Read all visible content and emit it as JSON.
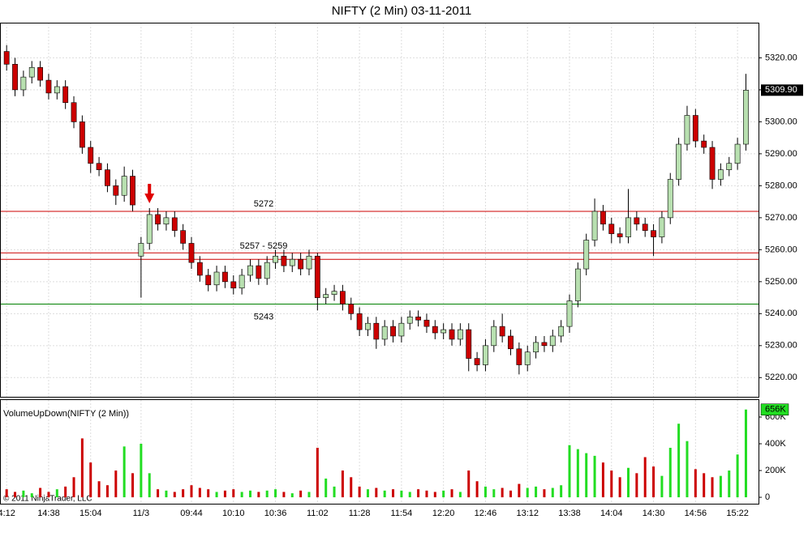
{
  "chart_data": [
    {
      "type": "candlestick",
      "title": "NIFTY (2 Min)  03-11-2011",
      "categories": [
        "4:12",
        null,
        null,
        null,
        null,
        "14:38",
        null,
        null,
        null,
        null,
        "15:04",
        null,
        null,
        null,
        null,
        null,
        "11/3",
        null,
        null,
        null,
        null,
        null,
        "09:44",
        null,
        null,
        null,
        null,
        "10:10",
        null,
        null,
        null,
        null,
        "10:36",
        null,
        null,
        null,
        null,
        "11:02",
        null,
        null,
        null,
        null,
        "11:28",
        null,
        null,
        null,
        null,
        "11:54",
        null,
        null,
        null,
        null,
        "12:20",
        null,
        null,
        null,
        null,
        "12:46",
        null,
        null,
        null,
        null,
        "13:12",
        null,
        null,
        null,
        null,
        "13:38",
        null,
        null,
        null,
        null,
        "14:04",
        null,
        null,
        null,
        null,
        "14:30",
        null,
        null,
        null,
        null,
        "14:56",
        null,
        null,
        null,
        null,
        "15:22",
        null
      ],
      "open": [
        5322,
        5318,
        5310,
        5314,
        5317,
        5313,
        5309,
        5311,
        5306,
        5300,
        5292,
        5287,
        5285,
        5280,
        5277,
        5283,
        5258,
        5262,
        5271,
        5268,
        5270,
        5266,
        5262,
        5256,
        5252,
        5249,
        5253,
        5250,
        5248,
        5252,
        5255,
        5251,
        5256,
        5258,
        5255,
        5257,
        5254,
        5258,
        5245,
        5246,
        5247,
        5243,
        5240,
        5235,
        5237,
        5232,
        5236,
        5233,
        5237,
        5239,
        5238,
        5236,
        5234,
        5235,
        5232,
        5235,
        5226,
        5224,
        5230,
        5236,
        5233,
        5229,
        5224,
        5228,
        5231,
        5230,
        5233,
        5236,
        5244,
        5254,
        5263,
        5272,
        5268,
        5265,
        5264,
        5270,
        5268,
        5266,
        5264,
        5270,
        5282,
        5293,
        5302,
        5294,
        5292,
        5282,
        5285,
        5287,
        5293
      ],
      "high": [
        5324,
        5320,
        5316,
        5319,
        5319,
        5315,
        5313,
        5313,
        5308,
        5302,
        5294,
        5289,
        5287,
        5282,
        5286,
        5285,
        5264,
        5273,
        5273,
        5272,
        5272,
        5268,
        5264,
        5258,
        5254,
        5255,
        5255,
        5252,
        5254,
        5257,
        5257,
        5258,
        5260,
        5260,
        5259,
        5259,
        5260,
        5259,
        5248,
        5249,
        5249,
        5245,
        5242,
        5239,
        5239,
        5238,
        5238,
        5239,
        5241,
        5241,
        5240,
        5238,
        5237,
        5237,
        5237,
        5237,
        5228,
        5232,
        5238,
        5240,
        5235,
        5231,
        5230,
        5233,
        5233,
        5235,
        5238,
        5246,
        5256,
        5265,
        5276,
        5274,
        5270,
        5267,
        5279,
        5272,
        5270,
        5268,
        5272,
        5284,
        5295,
        5305,
        5304,
        5296,
        5294,
        5287,
        5289,
        5295,
        5315
      ],
      "low": [
        5316,
        5308,
        5308,
        5312,
        5311,
        5307,
        5307,
        5304,
        5298,
        5290,
        5284,
        5283,
        5278,
        5274,
        5275,
        5272,
        5245,
        5260,
        5266,
        5266,
        5264,
        5260,
        5254,
        5250,
        5247,
        5247,
        5248,
        5246,
        5246,
        5250,
        5249,
        5249,
        5254,
        5253,
        5253,
        5252,
        5252,
        5241,
        5243,
        5244,
        5241,
        5238,
        5233,
        5233,
        5229,
        5230,
        5231,
        5231,
        5235,
        5236,
        5234,
        5232,
        5232,
        5230,
        5230,
        5222,
        5222,
        5222,
        5228,
        5231,
        5227,
        5221,
        5222,
        5226,
        5228,
        5228,
        5231,
        5234,
        5242,
        5252,
        5261,
        5266,
        5262,
        5262,
        5262,
        5266,
        5264,
        5258,
        5262,
        5268,
        5280,
        5291,
        5292,
        5290,
        5279,
        5280,
        5283,
        5285,
        5291
      ],
      "close": [
        5318,
        5310,
        5314,
        5317,
        5313,
        5309,
        5311,
        5306,
        5300,
        5292,
        5287,
        5285,
        5280,
        5277,
        5283,
        5274,
        5262,
        5271,
        5268,
        5270,
        5266,
        5262,
        5256,
        5252,
        5249,
        5253,
        5250,
        5248,
        5252,
        5255,
        5251,
        5256,
        5258,
        5255,
        5257,
        5254,
        5258,
        5245,
        5246,
        5247,
        5243,
        5240,
        5235,
        5237,
        5232,
        5236,
        5233,
        5237,
        5239,
        5238,
        5236,
        5234,
        5235,
        5232,
        5235,
        5226,
        5224,
        5230,
        5236,
        5233,
        5229,
        5224,
        5228,
        5231,
        5230,
        5233,
        5236,
        5244,
        5254,
        5263,
        5272,
        5268,
        5265,
        5264,
        5270,
        5268,
        5266,
        5264,
        5270,
        5282,
        5293,
        5302,
        5294,
        5292,
        5282,
        5285,
        5287,
        5293,
        5309.9
      ],
      "up_color": "#b8e0b0",
      "down_color": "#cc0000",
      "ylim": [
        5214,
        5331
      ],
      "yticks": [
        {
          "value": 5220,
          "label": "5220.00"
        },
        {
          "value": 5230,
          "label": "5230.00"
        },
        {
          "value": 5240,
          "label": "5240.00"
        },
        {
          "value": 5250,
          "label": "5250.00"
        },
        {
          "value": 5260,
          "label": "5260.00"
        },
        {
          "value": 5270,
          "label": "5270.00"
        },
        {
          "value": 5280,
          "label": "5280.00"
        },
        {
          "value": 5290,
          "label": "5290.00"
        },
        {
          "value": 5300,
          "label": "5300.00"
        },
        {
          "value": 5310,
          "label": "5310.00"
        },
        {
          "value": 5320,
          "label": "5320.00"
        }
      ],
      "grid": true,
      "last_price": {
        "value": 5309.9,
        "label": "5309.90"
      },
      "levels": [
        {
          "values": [
            5272
          ],
          "label": "5272",
          "color": "#cc0000"
        },
        {
          "values": [
            5259,
            5257
          ],
          "label": "5257 - 5259",
          "color": "#cc0000"
        },
        {
          "values": [
            5243
          ],
          "label": "5243",
          "color": "#008000"
        }
      ]
    },
    {
      "type": "bar",
      "title": "VolumeUpDown(NIFTY (2 Min))",
      "values": [
        60000,
        40000,
        50000,
        30000,
        70000,
        40000,
        60000,
        80000,
        150000,
        440000,
        260000,
        120000,
        90000,
        200000,
        380000,
        180000,
        400000,
        180000,
        60000,
        50000,
        40000,
        60000,
        90000,
        70000,
        60000,
        40000,
        50000,
        60000,
        40000,
        50000,
        40000,
        50000,
        60000,
        40000,
        30000,
        50000,
        40000,
        370000,
        140000,
        80000,
        200000,
        150000,
        80000,
        60000,
        70000,
        50000,
        60000,
        50000,
        40000,
        60000,
        50000,
        40000,
        50000,
        60000,
        40000,
        200000,
        120000,
        80000,
        60000,
        70000,
        50000,
        100000,
        70000,
        80000,
        60000,
        70000,
        90000,
        390000,
        360000,
        330000,
        310000,
        260000,
        200000,
        150000,
        220000,
        180000,
        300000,
        230000,
        160000,
        370000,
        550000,
        420000,
        210000,
        180000,
        150000,
        160000,
        200000,
        320000,
        656000
      ],
      "up_color": "#22dd22",
      "down_color": "#cc0000",
      "ylim": [
        -48000,
        733000
      ],
      "yticks": [
        0,
        {
          "value": 200000,
          "label": "200K"
        },
        {
          "value": 400000,
          "label": "400K"
        },
        {
          "value": 600000,
          "label": "600K"
        }
      ],
      "last_volume": {
        "value": 656000,
        "label": "656K"
      },
      "annotation": "© 2011 NinjaTrader, LLC"
    }
  ]
}
